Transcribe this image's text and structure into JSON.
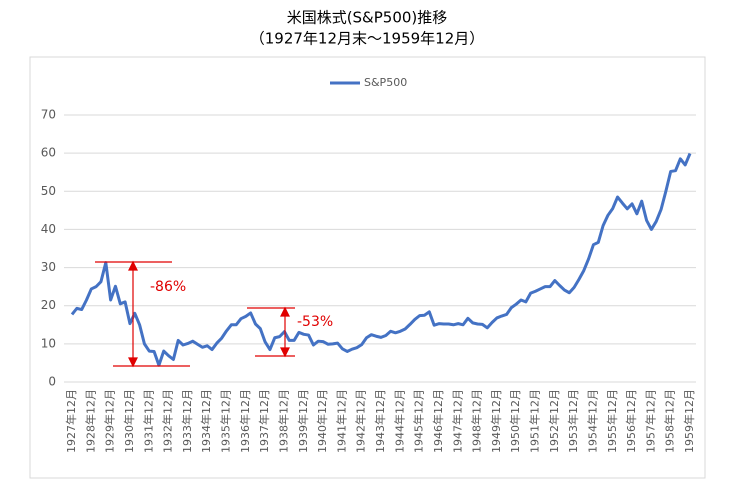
{
  "chart_data": {
    "type": "line",
    "title": "米国株式(S&P500)推移",
    "subtitle": "（1927年12月末～1959年12月）",
    "categories": [
      "1927年12月",
      null,
      null,
      null,
      "1928年12月",
      null,
      null,
      null,
      "1929年12月",
      null,
      null,
      null,
      "1930年12月",
      null,
      null,
      null,
      "1931年12月",
      null,
      null,
      null,
      "1932年12月",
      null,
      null,
      null,
      "1933年12月",
      null,
      null,
      null,
      "1934年12月",
      null,
      null,
      null,
      "1935年12月",
      null,
      null,
      null,
      "1936年12月",
      null,
      null,
      null,
      "1937年12月",
      null,
      null,
      null,
      "1938年12月",
      null,
      null,
      null,
      "1939年12月",
      null,
      null,
      null,
      "1940年12月",
      null,
      null,
      null,
      "1941年12月",
      null,
      null,
      null,
      "1942年12月",
      null,
      null,
      null,
      "1943年12月",
      null,
      null,
      null,
      "1944年12月",
      null,
      null,
      null,
      "1945年12月",
      null,
      null,
      null,
      "1946年12月",
      null,
      null,
      null,
      "1947年12月",
      null,
      null,
      null,
      "1948年12月",
      null,
      null,
      null,
      "1949年12月",
      null,
      null,
      null,
      "1950年12月",
      null,
      null,
      null,
      "1951年12月",
      null,
      null,
      null,
      "1952年12月",
      null,
      null,
      null,
      "1953年12月",
      null,
      null,
      null,
      "1954年12月",
      null,
      null,
      null,
      "1955年12月",
      null,
      null,
      null,
      "1956年12月",
      null,
      null,
      null,
      "1957年12月",
      null,
      null,
      null,
      "1958年12月",
      null,
      null,
      null,
      "1959年12月"
    ],
    "series": [
      {
        "name": "S&P500",
        "color": "#4472c4",
        "values": [
          17.7,
          19.3,
          19.0,
          21.5,
          24.4,
          25.0,
          26.3,
          31.3,
          21.5,
          25.1,
          20.5,
          21.0,
          15.3,
          18.0,
          15.0,
          10.0,
          8.1,
          8.0,
          4.4,
          8.1,
          6.9,
          5.9,
          10.9,
          9.7,
          10.1,
          10.7,
          9.9,
          9.1,
          9.5,
          8.5,
          10.2,
          11.5,
          13.4,
          15.0,
          15.0,
          16.6,
          17.2,
          18.1,
          15.2,
          14.0,
          10.5,
          8.5,
          11.6,
          11.9,
          13.2,
          10.9,
          10.9,
          13.0,
          12.5,
          12.3,
          9.7,
          10.7,
          10.6,
          9.9,
          10.0,
          10.2,
          8.7,
          8.0,
          8.6,
          9.0,
          9.8,
          11.6,
          12.4,
          12.0,
          11.7,
          12.2,
          13.3,
          12.9,
          13.3,
          13.9,
          15.1,
          16.4,
          17.4,
          17.5,
          18.4,
          14.9,
          15.3,
          15.2,
          15.2,
          15.0,
          15.3,
          15.0,
          16.7,
          15.5,
          15.2,
          15.1,
          14.2,
          15.6,
          16.8,
          17.3,
          17.7,
          19.5,
          20.4,
          21.5,
          21.0,
          23.3,
          23.8,
          24.4,
          25.0,
          25.0,
          26.6,
          25.3,
          24.1,
          23.4,
          24.8,
          26.9,
          29.2,
          32.3,
          36.0,
          36.6,
          41.0,
          43.7,
          45.5,
          48.5,
          46.9,
          45.4,
          46.7,
          44.1,
          47.4,
          42.4,
          40.0,
          42.1,
          45.2,
          50.0,
          55.2,
          55.4,
          58.5,
          56.9,
          59.9
        ]
      }
    ],
    "ylim": [
      0,
      70
    ],
    "yticks": [
      0,
      10,
      20,
      30,
      40,
      50,
      60,
      70
    ],
    "grid": true,
    "legend": "top",
    "annotations": [
      "-86%",
      "-53%"
    ]
  }
}
